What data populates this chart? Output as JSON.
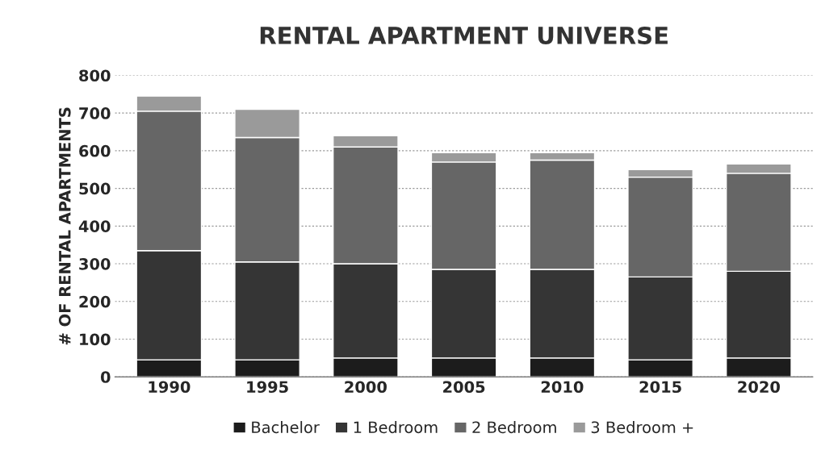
{
  "chart_data": {
    "type": "bar",
    "title": "RENTAL APARTMENT UNIVERSE",
    "ylabel": "# OF RENTAL APARTMENTS",
    "categories": [
      "1990",
      "1995",
      "2000",
      "2005",
      "2010",
      "2015",
      "2020"
    ],
    "stacked": true,
    "series": [
      {
        "name": "Bachelor",
        "color": "#1c1c1c",
        "values": [
          45,
          45,
          50,
          50,
          50,
          45,
          50
        ]
      },
      {
        "name": "1 Bedroom",
        "color": "#353535",
        "values": [
          290,
          260,
          250,
          235,
          235,
          220,
          230
        ]
      },
      {
        "name": "2 Bedroom",
        "color": "#666666",
        "values": [
          370,
          330,
          310,
          285,
          290,
          265,
          260
        ]
      },
      {
        "name": "3 Bedroom +",
        "color": "#9a9a9a",
        "values": [
          40,
          75,
          30,
          25,
          20,
          20,
          25
        ]
      }
    ],
    "ylim": [
      0,
      800
    ],
    "yticks": [
      0,
      100,
      200,
      300,
      400,
      500,
      600,
      700,
      800
    ],
    "grid": "y",
    "legend": "bottom"
  }
}
